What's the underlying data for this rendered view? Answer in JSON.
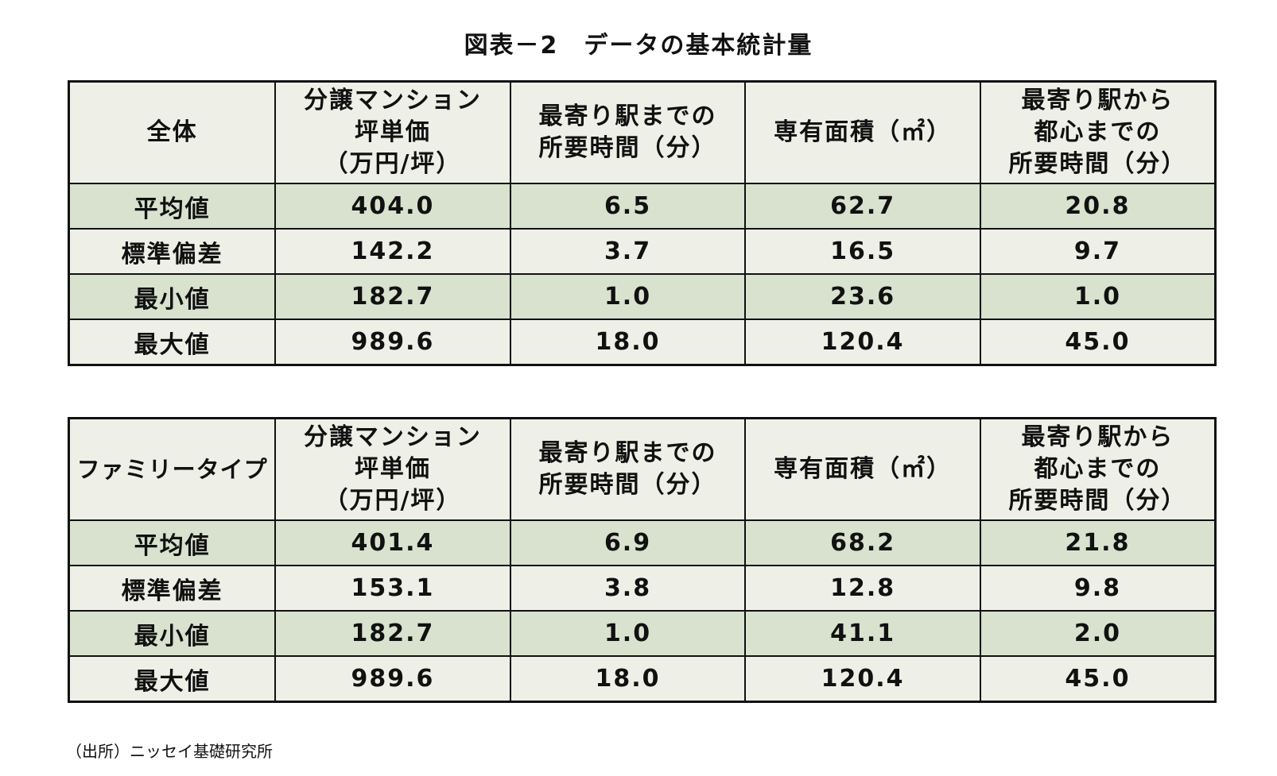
{
  "title": "図表－2　データの基本統計量",
  "tables": [
    {
      "corner": "全体",
      "headers": [
        [
          "分譲マンション",
          "坪単価",
          "（万円/坪）"
        ],
        [
          "最寄り駅までの",
          "所要時間（分）"
        ],
        [
          "専有面積（㎡）"
        ],
        [
          "最寄り駅から",
          "都心までの",
          "所要時間（分）"
        ]
      ],
      "rows": [
        {
          "label": "平均値",
          "values": [
            "404.0",
            "6.5",
            "62.7",
            "20.8"
          ]
        },
        {
          "label": "標準偏差",
          "values": [
            "142.2",
            "3.7",
            "16.5",
            "9.7"
          ]
        },
        {
          "label": "最小値",
          "values": [
            "182.7",
            "1.0",
            "23.6",
            "1.0"
          ]
        },
        {
          "label": "最大値",
          "values": [
            "989.6",
            "18.0",
            "120.4",
            "45.0"
          ]
        }
      ]
    },
    {
      "corner": "ファミリータイプ",
      "headers": [
        [
          "分譲マンション",
          "坪単価",
          "（万円/坪）"
        ],
        [
          "最寄り駅までの",
          "所要時間（分）"
        ],
        [
          "専有面積（㎡）"
        ],
        [
          "最寄り駅から",
          "都心までの",
          "所要時間（分）"
        ]
      ],
      "rows": [
        {
          "label": "平均値",
          "values": [
            "401.4",
            "6.9",
            "68.2",
            "21.8"
          ]
        },
        {
          "label": "標準偏差",
          "values": [
            "153.1",
            "3.8",
            "12.8",
            "9.8"
          ]
        },
        {
          "label": "最小値",
          "values": [
            "182.7",
            "1.0",
            "41.1",
            "2.0"
          ]
        },
        {
          "label": "最大値",
          "values": [
            "989.6",
            "18.0",
            "120.4",
            "45.0"
          ]
        }
      ]
    }
  ],
  "source": "（出所）ニッセイ基礎研究所",
  "colors": {
    "shaded_row": "#d8e2cf",
    "plain_row": "#eef0e8",
    "border": "#111111"
  }
}
